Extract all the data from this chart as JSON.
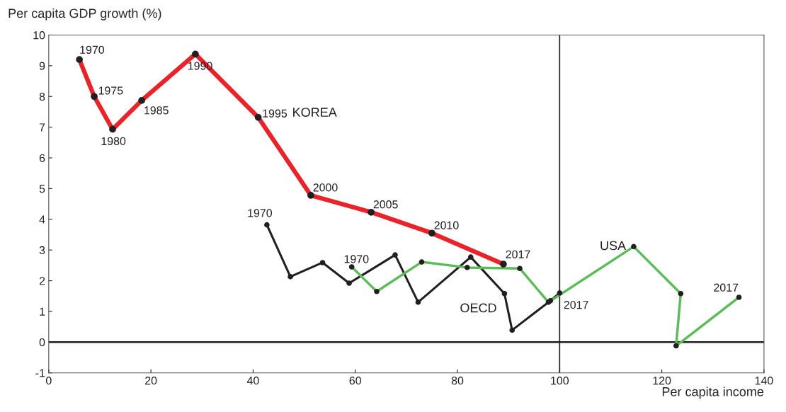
{
  "chart_data": {
    "type": "line",
    "xlabel": "Per capita income",
    "ylabel": "Per capita GDP growth (%)",
    "xlim": [
      0,
      140
    ],
    "ylim": [
      -1,
      10
    ],
    "xticks": [
      0,
      20,
      40,
      60,
      80,
      100,
      120,
      140
    ],
    "yticks": [
      -1,
      0,
      1,
      2,
      3,
      4,
      5,
      6,
      7,
      8,
      9,
      10
    ],
    "grid": false,
    "legend": false,
    "marker": "circle",
    "line_style": "solid",
    "ref_lines": [
      {
        "axis": "x",
        "value": 100,
        "color": "#231f20"
      },
      {
        "axis": "y",
        "value": 0,
        "color": "#231f20"
      }
    ],
    "series": [
      {
        "name": "KOREA",
        "color": "#e8232a",
        "x": [
          6.0,
          8.9,
          12.5,
          18.2,
          28.7,
          41.0,
          51.3,
          63.1,
          75.0,
          89.0
        ],
        "values": [
          9.2,
          8.0,
          6.93,
          7.87,
          9.38,
          7.32,
          4.78,
          4.23,
          3.55,
          2.54
        ]
      },
      {
        "name": "OECD",
        "color": "#231f20",
        "x": [
          42.7,
          47.3,
          53.6,
          58.8,
          67.8,
          72.3,
          82.6,
          89.2,
          90.7,
          98.2,
          100.0
        ],
        "values": [
          3.82,
          2.13,
          2.59,
          1.92,
          2.84,
          1.3,
          2.77,
          1.58,
          0.39,
          1.35,
          1.6
        ]
      },
      {
        "name": "USA",
        "color": "#5dbb5a",
        "x": [
          59.3,
          64.2,
          73.0,
          81.9,
          92.2,
          97.8,
          114.5,
          123.7,
          122.8,
          135.1
        ],
        "values": [
          2.45,
          1.65,
          2.61,
          2.43,
          2.4,
          1.3,
          3.11,
          1.58,
          -0.12,
          1.46
        ]
      }
    ],
    "annotations": [
      {
        "text": "1970",
        "x": 6.0,
        "y": 9.2
      },
      {
        "text": "1975",
        "x": 8.9,
        "y": 8.0
      },
      {
        "text": "1980",
        "x": 12.5,
        "y": 6.93
      },
      {
        "text": "1985",
        "x": 18.2,
        "y": 7.87
      },
      {
        "text": "1990",
        "x": 28.7,
        "y": 9.38
      },
      {
        "text": "1995",
        "x": 41.0,
        "y": 7.32
      },
      {
        "text": "2000",
        "x": 51.3,
        "y": 4.78
      },
      {
        "text": "2005",
        "x": 63.1,
        "y": 4.23
      },
      {
        "text": "2010",
        "x": 75.0,
        "y": 3.55
      },
      {
        "text": "2017",
        "x": 89.0,
        "y": 2.54
      },
      {
        "text": "1970",
        "x": 42.7,
        "y": 3.82
      },
      {
        "text": "2017",
        "x": 100.0,
        "y": 1.6
      },
      {
        "text": "1970",
        "x": 59.3,
        "y": 2.45
      },
      {
        "text": "2017",
        "x": 135.1,
        "y": 1.46
      }
    ]
  }
}
